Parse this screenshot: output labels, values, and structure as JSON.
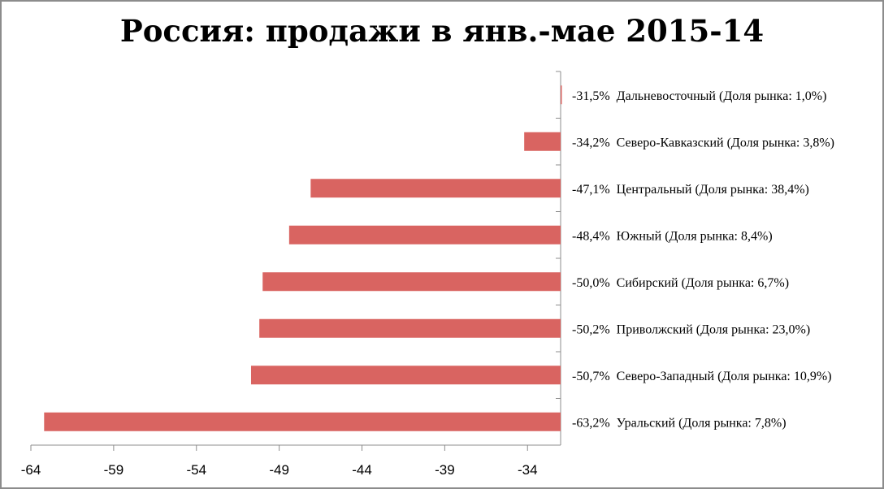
{
  "chart_data": {
    "type": "bar",
    "orientation": "horizontal",
    "title": "Россия: продажи в янв.-мае 2015-14",
    "categories": [
      "Дальневосточный",
      "Северо-Кавказский",
      "Центральный",
      "Южный",
      "Сибирский",
      "Приволжский",
      "Северо-Западный",
      "Уральский"
    ],
    "values": [
      -31.5,
      -34.2,
      -47.1,
      -48.4,
      -50.0,
      -50.2,
      -50.7,
      -63.2
    ],
    "labels": [
      "-31,5%  Дальневосточный (Доля рынка: 1,0%)",
      "-34,2%  Северо-Кавказский (Доля рынка: 3,8%)",
      "-47,1%  Центральный (Доля рынка: 38,4%)",
      "-48,4%  Южный (Доля рынка: 8,4%)",
      "-50,0%  Сибирский (Доля рынка: 6,7%)",
      "-50,2%  Приволжский (Доля рынка: 23,0%)",
      "-50,7%  Северо-Западный (Доля рынка: 10,9%)",
      "-63,2%  Уральский (Доля рынка: 7,8%)"
    ],
    "xlim": [
      -64,
      -32
    ],
    "xticks": [
      -64,
      -59,
      -54,
      -49,
      -44,
      -39,
      -34
    ],
    "xlabel": "",
    "ylabel": "",
    "grid": false,
    "bar_color": "#d96461"
  }
}
